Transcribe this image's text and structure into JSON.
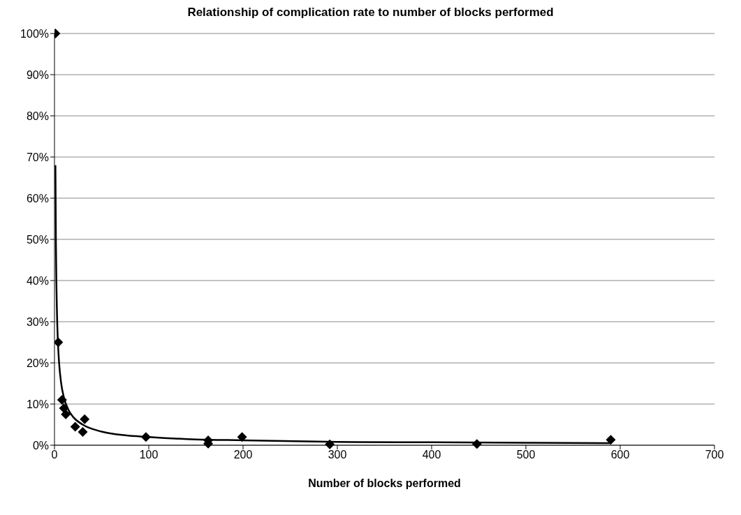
{
  "chart_data": {
    "type": "scatter",
    "title": "Relationship of complication rate to number of blocks performed",
    "xlabel": "Number of blocks performed",
    "xlim": [
      0,
      700
    ],
    "xticks": [
      0,
      100,
      200,
      300,
      400,
      500,
      600,
      700
    ],
    "ylim": [
      0,
      100
    ],
    "yticks": [
      {
        "value": 0,
        "label": "0%"
      },
      {
        "value": 10,
        "label": "10%"
      },
      {
        "value": 20,
        "label": "20%"
      },
      {
        "value": 30,
        "label": "30%"
      },
      {
        "value": 40,
        "label": "40%"
      },
      {
        "value": 50,
        "label": "50%"
      },
      {
        "value": 60,
        "label": "60%"
      },
      {
        "value": 70,
        "label": "70%"
      },
      {
        "value": 80,
        "label": "80%"
      },
      {
        "value": 90,
        "label": "90%"
      },
      {
        "value": 100,
        "label": "100%"
      }
    ],
    "grid": "y",
    "legend": false,
    "marker": "diamond",
    "series": [
      {
        "color": "#000000",
        "x": [
          1,
          4,
          8,
          10,
          12,
          22,
          30,
          32,
          97,
          163,
          163,
          199,
          292,
          448,
          590
        ],
        "values": [
          100,
          25,
          11,
          9,
          7.5,
          4.5,
          3.2,
          6.3,
          2,
          1.2,
          0.4,
          2,
          0.2,
          0.3,
          1.3
        ]
      },
      {
        "type": "line",
        "color": "#000000",
        "line_style": "solid",
        "marker": "none",
        "x": [
          1,
          1.5,
          2,
          3,
          4,
          5,
          7,
          10,
          15,
          20,
          30,
          50,
          75,
          100,
          150,
          200,
          300,
          400,
          500,
          590
        ],
        "values": [
          68,
          49.8,
          39.9,
          29.2,
          23.4,
          19.7,
          15.2,
          11.6,
          8.5,
          6.8,
          5,
          3.3,
          2.4,
          2,
          1.4,
          1.2,
          0.8,
          0.7,
          0.6,
          0.5
        ]
      }
    ]
  }
}
